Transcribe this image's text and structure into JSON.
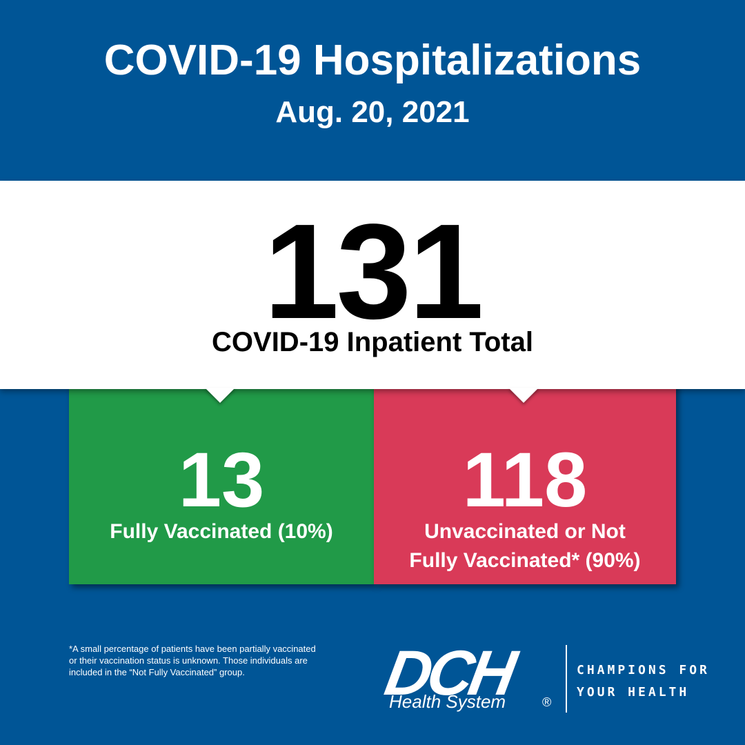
{
  "header": {
    "title": "COVID-19 Hospitalizations",
    "date": "Aug. 20, 2021"
  },
  "total": {
    "value": "131",
    "label": "COVID-19 Inpatient Total"
  },
  "vaccinated": {
    "value": "13",
    "label": "Fully Vaccinated (10%)",
    "color": "#219a48"
  },
  "unvaccinated": {
    "value": "118",
    "label_line1": "Unvaccinated or Not",
    "label_line2": "Fully Vaccinated* (90%)",
    "color": "#d93a58"
  },
  "footnote": {
    "line1": "*A small percentage of patients have been partially vaccinated",
    "line2": "or their vaccination status is unknown. Those individuals are",
    "line3": "included in the “Not Fully Vaccinated” group."
  },
  "logo": {
    "brand": "DCH",
    "sub": "Health System",
    "registered": "®"
  },
  "tagline": {
    "line1": "CHAMPIONS FOR",
    "line2": "YOUR HEALTH"
  },
  "colors": {
    "background": "#005596",
    "panel": "#ffffff"
  }
}
